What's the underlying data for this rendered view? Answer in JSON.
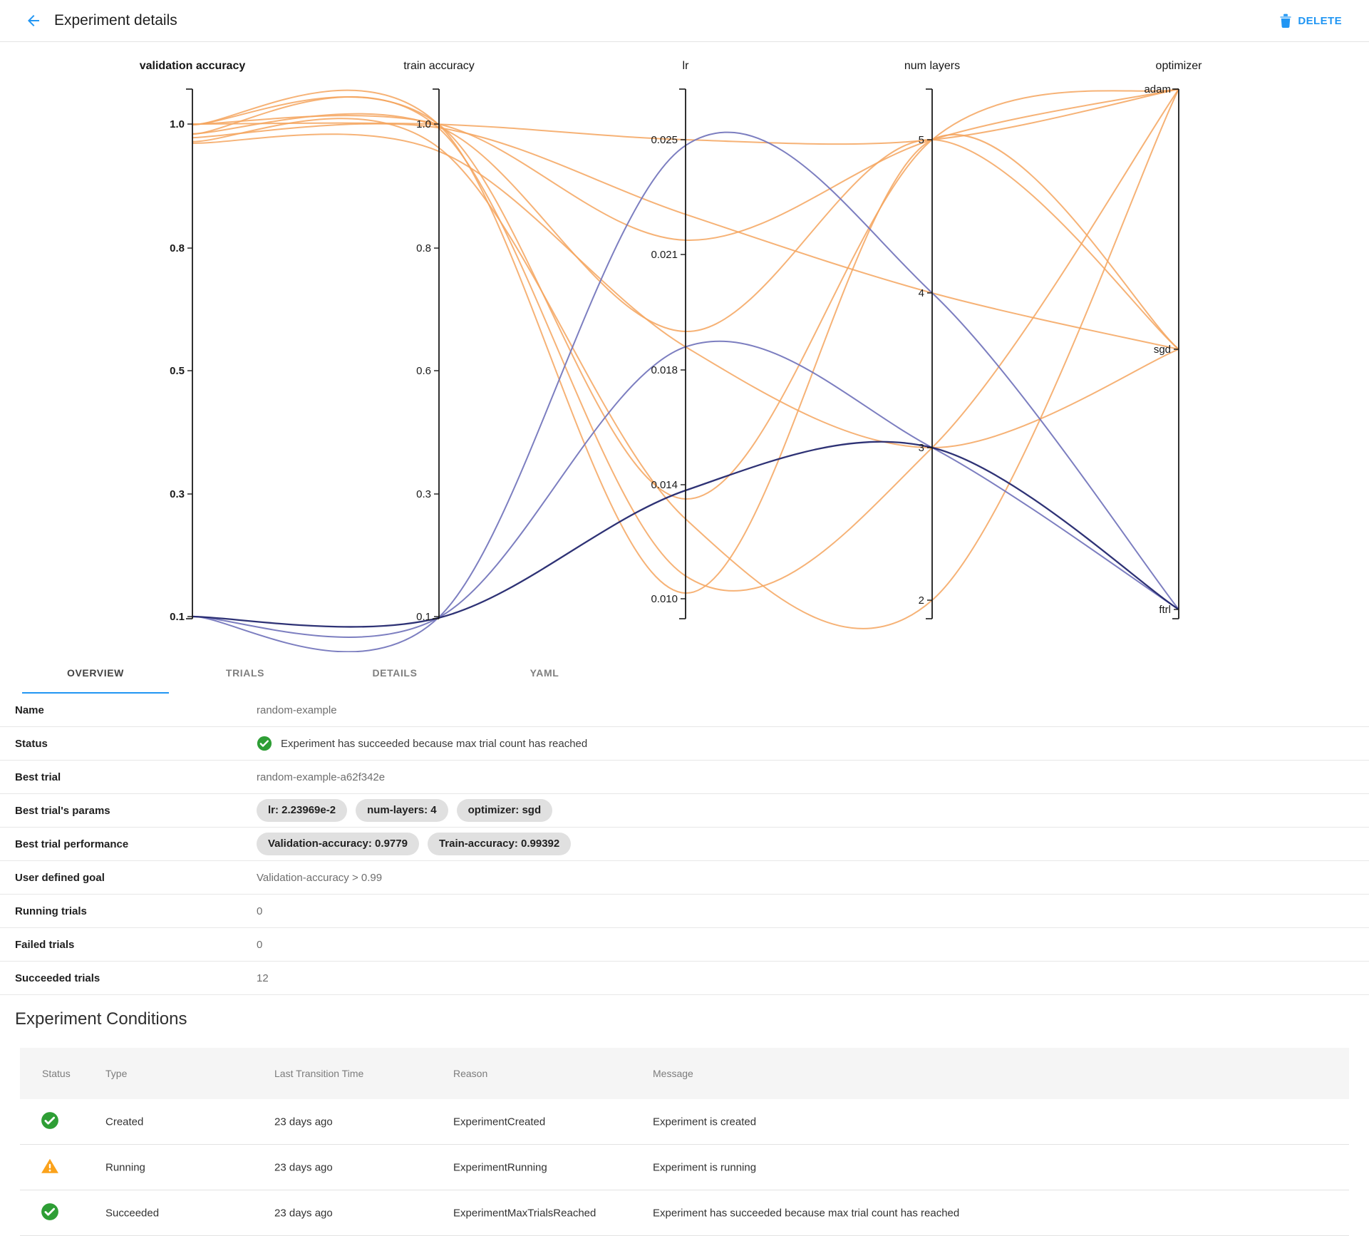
{
  "header": {
    "title": "Experiment details",
    "delete_label": "DELETE"
  },
  "tabs": [
    {
      "label": "OVERVIEW",
      "active": true
    },
    {
      "label": "TRIALS",
      "active": false
    },
    {
      "label": "DETAILS",
      "active": false
    },
    {
      "label": "YAML",
      "active": false
    }
  ],
  "overview": {
    "rows": [
      {
        "label": "Name",
        "type": "text",
        "value": "random-example"
      },
      {
        "label": "Status",
        "type": "status",
        "icon": "check-circle",
        "value": "Experiment has succeeded because max trial count has reached"
      },
      {
        "label": "Best trial",
        "type": "text",
        "value": "random-example-a62f342e"
      },
      {
        "label": "Best trial's params",
        "type": "chips",
        "chips": [
          "lr: 2.23969e-2",
          "num-layers: 4",
          "optimizer: sgd"
        ]
      },
      {
        "label": "Best trial performance",
        "type": "chips",
        "chips": [
          "Validation-accuracy: 0.9779",
          "Train-accuracy: 0.99392"
        ]
      },
      {
        "label": "User defined goal",
        "type": "text",
        "value": "Validation-accuracy > 0.99"
      },
      {
        "label": "Running trials",
        "type": "text",
        "value": "0"
      },
      {
        "label": "Failed trials",
        "type": "text",
        "value": "0"
      },
      {
        "label": "Succeeded trials",
        "type": "text",
        "value": "12"
      }
    ]
  },
  "conditions": {
    "heading": "Experiment Conditions",
    "columns": [
      "Status",
      "Type",
      "Last Transition Time",
      "Reason",
      "Message"
    ],
    "rows": [
      {
        "icon": "check-circle",
        "type": "Created",
        "time": "23 days ago",
        "reason": "ExperimentCreated",
        "message": "Experiment is created"
      },
      {
        "icon": "warning-triangle",
        "type": "Running",
        "time": "23 days ago",
        "reason": "ExperimentRunning",
        "message": "Experiment is running"
      },
      {
        "icon": "check-circle",
        "type": "Succeeded",
        "time": "23 days ago",
        "reason": "ExperimentMaxTrialsReached",
        "message": "Experiment has succeeded because max trial count has reached"
      }
    ]
  },
  "colors": {
    "accent_blue": "#2196f3",
    "success_green": "#2e9e35",
    "warning_amber": "#fba21b",
    "trial_good": "#f5a55e",
    "trial_bad": "#7577bd",
    "trial_bad_dark": "#23276e"
  },
  "chart_data": {
    "type": "parallel-coordinates",
    "title": "",
    "legend": "none",
    "axes": [
      {
        "key": "validation_accuracy",
        "label": "validation accuracy",
        "bold": true,
        "kind": "numeric",
        "ticks": [
          {
            "label": "1.0",
            "value": 1.0,
            "t": 0.066
          },
          {
            "label": "0.8",
            "value": 0.8,
            "t": 0.3002
          },
          {
            "label": "0.5",
            "value": 0.5,
            "t": 0.5317
          },
          {
            "label": "0.3",
            "value": 0.3,
            "t": 0.7645
          },
          {
            "label": "0.1",
            "value": 0.1,
            "t": 0.996
          }
        ]
      },
      {
        "key": "train_accuracy",
        "label": "train accuracy",
        "bold": false,
        "kind": "numeric",
        "ticks": [
          {
            "label": "1.0",
            "value": 1.0,
            "t": 0.066
          },
          {
            "label": "0.8",
            "value": 0.8,
            "t": 0.3002
          },
          {
            "label": "0.6",
            "value": 0.6,
            "t": 0.5317
          },
          {
            "label": "0.3",
            "value": 0.3,
            "t": 0.7645
          },
          {
            "label": "0.1",
            "value": 0.1,
            "t": 0.996
          }
        ]
      },
      {
        "key": "lr",
        "label": "lr",
        "bold": false,
        "kind": "numeric",
        "ticks": [
          {
            "label": "0.025",
            "value": 0.025,
            "t": 0.0956
          },
          {
            "label": "0.021",
            "value": 0.021,
            "t": 0.3123
          },
          {
            "label": "0.018",
            "value": 0.018,
            "t": 0.5303
          },
          {
            "label": "0.014",
            "value": 0.014,
            "t": 0.747
          },
          {
            "label": "0.010",
            "value": 0.01,
            "t": 0.9623
          }
        ]
      },
      {
        "key": "num_layers",
        "label": "num layers",
        "bold": false,
        "kind": "numeric",
        "ticks": [
          {
            "label": "5",
            "value": 5,
            "t": 0.0956
          },
          {
            "label": "4",
            "value": 4,
            "t": 0.3849
          },
          {
            "label": "3",
            "value": 3,
            "t": 0.677
          },
          {
            "label": "2",
            "value": 2,
            "t": 0.965
          }
        ]
      },
      {
        "key": "optimizer",
        "label": "optimizer",
        "bold": false,
        "kind": "ordinal",
        "ticks": [
          {
            "label": "adam",
            "value": "adam",
            "t": 0.0
          },
          {
            "label": "sgd",
            "value": "sgd",
            "t": 0.4913
          },
          {
            "label": "ftrl",
            "value": "ftrl",
            "t": 0.9825
          }
        ]
      }
    ],
    "trials": [
      {
        "validation_accuracy": 1.0,
        "train_accuracy": 0.9996,
        "lr": 0.025,
        "num_layers": 5,
        "optimizer": "adam",
        "group": "good"
      },
      {
        "validation_accuracy": 0.9996,
        "train_accuracy": 0.9999,
        "lr": 0.0215,
        "num_layers": 5,
        "optimizer": "adam",
        "group": "good"
      },
      {
        "validation_accuracy": 0.9992,
        "train_accuracy": 0.999,
        "lr": 0.0135,
        "num_layers": 5,
        "optimizer": "adam",
        "group": "good"
      },
      {
        "validation_accuracy": 0.9988,
        "train_accuracy": 0.9984,
        "lr": 0.0102,
        "num_layers": 5,
        "optimizer": "sgd",
        "group": "good"
      },
      {
        "validation_accuracy": 0.9779,
        "train_accuracy": 0.99392,
        "lr": 0.0224,
        "num_layers": 4,
        "optimizer": "sgd",
        "group": "good"
      },
      {
        "validation_accuracy": 0.9842,
        "train_accuracy": 0.9952,
        "lr": 0.019,
        "num_layers": 5,
        "optimizer": "sgd",
        "group": "good"
      },
      {
        "validation_accuracy": 0.9718,
        "train_accuracy": 0.9615,
        "lr": 0.0128,
        "num_layers": 2,
        "optimizer": "adam",
        "group": "good"
      },
      {
        "validation_accuracy": 0.9692,
        "train_accuracy": 0.956,
        "lr": 0.0186,
        "num_layers": 3,
        "optimizer": "sgd",
        "group": "good"
      },
      {
        "validation_accuracy": 0.9838,
        "train_accuracy": 0.993,
        "lr": 0.0108,
        "num_layers": 3,
        "optimizer": "adam",
        "group": "good"
      },
      {
        "validation_accuracy": 0.1003,
        "train_accuracy": 0.0992,
        "lr": 0.0248,
        "num_layers": 4,
        "optimizer": "ftrl",
        "group": "bad"
      },
      {
        "validation_accuracy": 0.1002,
        "train_accuracy": 0.0986,
        "lr": 0.0186,
        "num_layers": 3,
        "optimizer": "ftrl",
        "group": "bad"
      },
      {
        "validation_accuracy": 0.1,
        "train_accuracy": 0.098,
        "lr": 0.0138,
        "num_layers": 3,
        "optimizer": "ftrl",
        "group": "bad-dark"
      }
    ]
  }
}
